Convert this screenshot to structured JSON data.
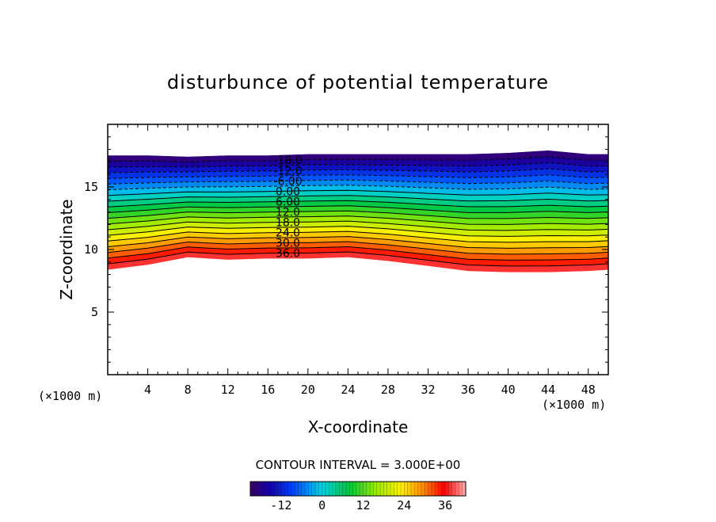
{
  "chart_data": {
    "type": "heatmap",
    "title": "disturbunce of potential temperature",
    "xlabel": "X-coordinate",
    "ylabel": "Z-coordinate",
    "x_unit": "(×1000 m)",
    "y_unit": "(×1000 m)",
    "xlim": [
      0,
      50
    ],
    "ylim": [
      0,
      20
    ],
    "x_ticks": [
      "4",
      "8",
      "12",
      "16",
      "20",
      "24",
      "28",
      "32",
      "36",
      "40",
      "44",
      "48"
    ],
    "y_ticks": [
      "5",
      "10",
      "15"
    ],
    "contour_interval_text": "CONTOUR INTERVAL = 3.000E+00",
    "contour_labels": [
      "-18.0",
      "-12.0",
      "-6.00",
      "0.00",
      "6.00",
      "12.0",
      "18.0",
      "24.0",
      "30.0",
      "36.0"
    ],
    "colorbar_ticks": [
      "-12",
      "0",
      "12",
      "24",
      "36"
    ],
    "value_range": [
      -21,
      42
    ],
    "levels": [
      -21,
      -18,
      -15,
      -12,
      -9,
      -6,
      -3,
      0,
      3,
      6,
      9,
      12,
      15,
      18,
      21,
      24,
      27,
      30,
      33,
      36,
      39
    ],
    "profile_x": [
      0,
      4,
      8,
      12,
      16,
      20,
      24,
      28,
      32,
      36,
      40,
      44,
      48,
      50
    ],
    "top_boundary_z": [
      17.5,
      17.5,
      17.4,
      17.5,
      17.5,
      17.6,
      17.6,
      17.6,
      17.6,
      17.6,
      17.7,
      17.9,
      17.6,
      17.6
    ],
    "bottom_boundary_z": [
      8.4,
      8.8,
      9.4,
      9.2,
      9.3,
      9.3,
      9.4,
      9.1,
      8.7,
      8.3,
      8.2,
      8.2,
      8.3,
      8.4
    ],
    "colors": {
      "min": "#3a006b",
      "low": "#0000b0",
      "mid_cold": "#00c8e0",
      "neutral": "#00d040",
      "warm": "#f0ff00",
      "hot": "#ff0000",
      "max": "#ffb0b0"
    }
  }
}
